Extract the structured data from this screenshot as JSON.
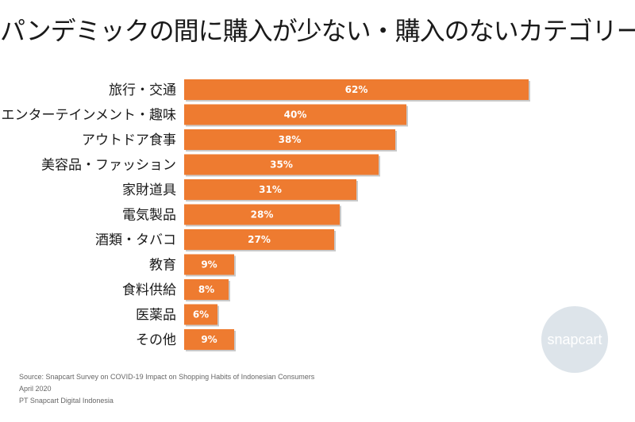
{
  "chart_data": {
    "type": "bar",
    "orientation": "horizontal",
    "title": "パンデミックの間に購入が少ない・購入のないカテゴリー",
    "categories": [
      "旅行・交通",
      "エンターテインメント・趣味",
      "アウトドア食事",
      "美容品・ファッション",
      "家財道具",
      "電気製品",
      "酒類・タバコ",
      "教育",
      "食料供給",
      "医薬品",
      "その他"
    ],
    "values": [
      62,
      40,
      38,
      35,
      31,
      28,
      27,
      9,
      8,
      6,
      9
    ],
    "value_labels": [
      "62%",
      "40%",
      "38%",
      "35%",
      "31%",
      "28%",
      "27%",
      "9%",
      "8%",
      "6%",
      "9%"
    ],
    "xlim": [
      0,
      100
    ],
    "grid": false,
    "bar_color": "#ee7b30"
  },
  "footer": {
    "line1": "Source: Snapcart Survey on COVID-19 Impact on Shopping Habits of Indonesian Consumers",
    "line2": "April 2020",
    "line3": "PT Snapcart Digital Indonesia"
  },
  "logo": {
    "text": "snapcart",
    "color": "#dde4ea"
  }
}
